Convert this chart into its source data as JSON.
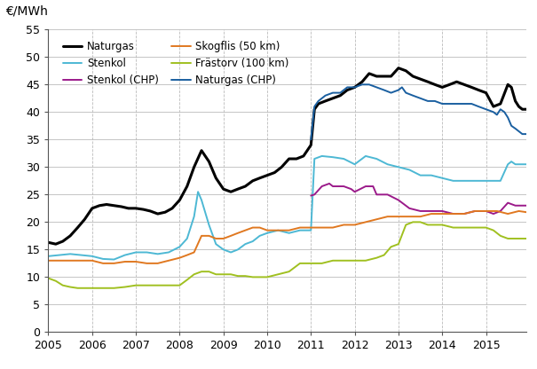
{
  "ylabel": "€/MWh",
  "ylim": [
    0,
    55
  ],
  "yticks": [
    0,
    5,
    10,
    15,
    20,
    25,
    30,
    35,
    40,
    45,
    50,
    55
  ],
  "xlim": [
    2005.0,
    2015.92
  ],
  "xtick_positions": [
    2005,
    2006,
    2007,
    2008,
    2009,
    2010,
    2011,
    2012,
    2013,
    2014,
    2015
  ],
  "xtick_labels": [
    "2005",
    "2006",
    "2007",
    "2008",
    "2009",
    "2010",
    "2011",
    "2012",
    "2013",
    "2014",
    "2015"
  ],
  "background": "#ffffff",
  "grid_color": "#bbbbbb",
  "legend_order": [
    "Naturgas",
    "Stenkol",
    "Stenkol (CHP)",
    "Skogflis (50 km)",
    "Frästorv (100 km)",
    "Naturgas (CHP)"
  ],
  "series": {
    "Naturgas": {
      "color": "#000000",
      "lw": 2.2,
      "points": [
        [
          2005.0,
          16.3
        ],
        [
          2005.17,
          16.0
        ],
        [
          2005.33,
          16.5
        ],
        [
          2005.5,
          17.5
        ],
        [
          2005.67,
          19.0
        ],
        [
          2005.83,
          20.5
        ],
        [
          2006.0,
          22.5
        ],
        [
          2006.17,
          23.0
        ],
        [
          2006.33,
          23.2
        ],
        [
          2006.5,
          23.0
        ],
        [
          2006.67,
          22.8
        ],
        [
          2006.83,
          22.5
        ],
        [
          2007.0,
          22.5
        ],
        [
          2007.17,
          22.3
        ],
        [
          2007.33,
          22.0
        ],
        [
          2007.5,
          21.5
        ],
        [
          2007.67,
          21.8
        ],
        [
          2007.83,
          22.5
        ],
        [
          2008.0,
          24.0
        ],
        [
          2008.17,
          26.5
        ],
        [
          2008.33,
          30.0
        ],
        [
          2008.5,
          33.0
        ],
        [
          2008.67,
          31.0
        ],
        [
          2008.83,
          28.0
        ],
        [
          2009.0,
          26.0
        ],
        [
          2009.17,
          25.5
        ],
        [
          2009.33,
          26.0
        ],
        [
          2009.5,
          26.5
        ],
        [
          2009.67,
          27.5
        ],
        [
          2009.83,
          28.0
        ],
        [
          2010.0,
          28.5
        ],
        [
          2010.17,
          29.0
        ],
        [
          2010.33,
          30.0
        ],
        [
          2010.5,
          31.5
        ],
        [
          2010.67,
          31.5
        ],
        [
          2010.83,
          32.0
        ],
        [
          2011.0,
          34.0
        ],
        [
          2011.08,
          40.5
        ],
        [
          2011.17,
          41.5
        ],
        [
          2011.33,
          42.0
        ],
        [
          2011.5,
          42.5
        ],
        [
          2011.67,
          43.0
        ],
        [
          2011.83,
          44.0
        ],
        [
          2012.0,
          44.5
        ],
        [
          2012.17,
          45.5
        ],
        [
          2012.33,
          47.0
        ],
        [
          2012.5,
          46.5
        ],
        [
          2012.67,
          46.5
        ],
        [
          2012.83,
          46.5
        ],
        [
          2013.0,
          48.0
        ],
        [
          2013.17,
          47.5
        ],
        [
          2013.33,
          46.5
        ],
        [
          2013.5,
          46.0
        ],
        [
          2013.67,
          45.5
        ],
        [
          2013.83,
          45.0
        ],
        [
          2014.0,
          44.5
        ],
        [
          2014.17,
          45.0
        ],
        [
          2014.33,
          45.5
        ],
        [
          2014.5,
          45.0
        ],
        [
          2014.67,
          44.5
        ],
        [
          2014.83,
          44.0
        ],
        [
          2015.0,
          43.5
        ],
        [
          2015.17,
          41.0
        ],
        [
          2015.33,
          41.5
        ],
        [
          2015.5,
          45.0
        ],
        [
          2015.58,
          44.5
        ],
        [
          2015.67,
          42.0
        ],
        [
          2015.75,
          41.0
        ],
        [
          2015.83,
          40.5
        ],
        [
          2015.92,
          40.5
        ]
      ]
    },
    "Stenkol": {
      "color": "#4db8d4",
      "lw": 1.4,
      "points": [
        [
          2005.0,
          13.8
        ],
        [
          2005.25,
          14.0
        ],
        [
          2005.5,
          14.2
        ],
        [
          2005.75,
          14.0
        ],
        [
          2006.0,
          13.8
        ],
        [
          2006.25,
          13.3
        ],
        [
          2006.5,
          13.2
        ],
        [
          2006.75,
          14.0
        ],
        [
          2007.0,
          14.5
        ],
        [
          2007.25,
          14.5
        ],
        [
          2007.5,
          14.2
        ],
        [
          2007.75,
          14.5
        ],
        [
          2008.0,
          15.5
        ],
        [
          2008.17,
          17.0
        ],
        [
          2008.33,
          21.0
        ],
        [
          2008.42,
          25.5
        ],
        [
          2008.5,
          24.0
        ],
        [
          2008.67,
          19.5
        ],
        [
          2008.83,
          16.0
        ],
        [
          2009.0,
          15.0
        ],
        [
          2009.17,
          14.5
        ],
        [
          2009.33,
          15.0
        ],
        [
          2009.5,
          16.0
        ],
        [
          2009.67,
          16.5
        ],
        [
          2009.83,
          17.5
        ],
        [
          2010.0,
          18.0
        ],
        [
          2010.25,
          18.5
        ],
        [
          2010.5,
          18.0
        ],
        [
          2010.75,
          18.5
        ],
        [
          2011.0,
          18.5
        ],
        [
          2011.08,
          31.5
        ],
        [
          2011.25,
          32.0
        ],
        [
          2011.5,
          31.8
        ],
        [
          2011.75,
          31.5
        ],
        [
          2012.0,
          30.5
        ],
        [
          2012.25,
          32.0
        ],
        [
          2012.5,
          31.5
        ],
        [
          2012.75,
          30.5
        ],
        [
          2013.0,
          30.0
        ],
        [
          2013.25,
          29.5
        ],
        [
          2013.5,
          28.5
        ],
        [
          2013.75,
          28.5
        ],
        [
          2014.0,
          28.0
        ],
        [
          2014.25,
          27.5
        ],
        [
          2014.5,
          27.5
        ],
        [
          2014.75,
          27.5
        ],
        [
          2015.0,
          27.5
        ],
        [
          2015.17,
          27.5
        ],
        [
          2015.33,
          27.5
        ],
        [
          2015.5,
          30.5
        ],
        [
          2015.58,
          31.0
        ],
        [
          2015.67,
          30.5
        ],
        [
          2015.75,
          30.5
        ],
        [
          2015.92,
          30.5
        ]
      ]
    },
    "Stenkol (CHP)": {
      "color": "#9b1a8a",
      "lw": 1.4,
      "points": [
        [
          2011.0,
          24.8
        ],
        [
          2011.08,
          25.0
        ],
        [
          2011.25,
          26.5
        ],
        [
          2011.42,
          27.0
        ],
        [
          2011.5,
          26.5
        ],
        [
          2011.75,
          26.5
        ],
        [
          2011.92,
          26.0
        ],
        [
          2012.0,
          25.5
        ],
        [
          2012.25,
          26.5
        ],
        [
          2012.42,
          26.5
        ],
        [
          2012.5,
          25.0
        ],
        [
          2012.75,
          25.0
        ],
        [
          2013.0,
          24.0
        ],
        [
          2013.25,
          22.5
        ],
        [
          2013.5,
          22.0
        ],
        [
          2013.75,
          22.0
        ],
        [
          2014.0,
          22.0
        ],
        [
          2014.25,
          21.5
        ],
        [
          2014.5,
          21.5
        ],
        [
          2014.75,
          22.0
        ],
        [
          2015.0,
          22.0
        ],
        [
          2015.17,
          21.5
        ],
        [
          2015.33,
          22.0
        ],
        [
          2015.5,
          23.5
        ],
        [
          2015.67,
          23.0
        ],
        [
          2015.83,
          23.0
        ],
        [
          2015.92,
          23.0
        ]
      ]
    },
    "Skogflis (50 km)": {
      "color": "#e07820",
      "lw": 1.4,
      "points": [
        [
          2005.0,
          13.0
        ],
        [
          2005.25,
          13.0
        ],
        [
          2005.5,
          13.0
        ],
        [
          2005.75,
          13.0
        ],
        [
          2006.0,
          13.0
        ],
        [
          2006.25,
          12.5
        ],
        [
          2006.5,
          12.5
        ],
        [
          2006.75,
          12.8
        ],
        [
          2007.0,
          12.8
        ],
        [
          2007.25,
          12.5
        ],
        [
          2007.5,
          12.5
        ],
        [
          2007.75,
          13.0
        ],
        [
          2008.0,
          13.5
        ],
        [
          2008.17,
          14.0
        ],
        [
          2008.33,
          14.5
        ],
        [
          2008.5,
          17.5
        ],
        [
          2008.67,
          17.5
        ],
        [
          2008.83,
          17.0
        ],
        [
          2009.0,
          17.0
        ],
        [
          2009.17,
          17.5
        ],
        [
          2009.33,
          18.0
        ],
        [
          2009.5,
          18.5
        ],
        [
          2009.67,
          19.0
        ],
        [
          2009.83,
          19.0
        ],
        [
          2010.0,
          18.5
        ],
        [
          2010.25,
          18.5
        ],
        [
          2010.5,
          18.5
        ],
        [
          2010.75,
          19.0
        ],
        [
          2011.0,
          19.0
        ],
        [
          2011.25,
          19.0
        ],
        [
          2011.5,
          19.0
        ],
        [
          2011.75,
          19.5
        ],
        [
          2012.0,
          19.5
        ],
        [
          2012.25,
          20.0
        ],
        [
          2012.5,
          20.5
        ],
        [
          2012.75,
          21.0
        ],
        [
          2013.0,
          21.0
        ],
        [
          2013.25,
          21.0
        ],
        [
          2013.5,
          21.0
        ],
        [
          2013.75,
          21.5
        ],
        [
          2014.0,
          21.5
        ],
        [
          2014.25,
          21.5
        ],
        [
          2014.5,
          21.5
        ],
        [
          2014.75,
          22.0
        ],
        [
          2015.0,
          22.0
        ],
        [
          2015.25,
          22.0
        ],
        [
          2015.5,
          21.5
        ],
        [
          2015.75,
          22.0
        ],
        [
          2015.92,
          21.8
        ]
      ]
    },
    "Frästorv (100 km)": {
      "color": "#a0c020",
      "lw": 1.4,
      "points": [
        [
          2005.0,
          9.8
        ],
        [
          2005.17,
          9.3
        ],
        [
          2005.33,
          8.5
        ],
        [
          2005.5,
          8.2
        ],
        [
          2005.67,
          8.0
        ],
        [
          2005.83,
          8.0
        ],
        [
          2006.0,
          8.0
        ],
        [
          2006.25,
          8.0
        ],
        [
          2006.5,
          8.0
        ],
        [
          2006.75,
          8.2
        ],
        [
          2007.0,
          8.5
        ],
        [
          2007.25,
          8.5
        ],
        [
          2007.5,
          8.5
        ],
        [
          2007.75,
          8.5
        ],
        [
          2008.0,
          8.5
        ],
        [
          2008.17,
          9.5
        ],
        [
          2008.33,
          10.5
        ],
        [
          2008.5,
          11.0
        ],
        [
          2008.67,
          11.0
        ],
        [
          2008.83,
          10.5
        ],
        [
          2009.0,
          10.5
        ],
        [
          2009.17,
          10.5
        ],
        [
          2009.33,
          10.2
        ],
        [
          2009.5,
          10.2
        ],
        [
          2009.67,
          10.0
        ],
        [
          2009.83,
          10.0
        ],
        [
          2010.0,
          10.0
        ],
        [
          2010.25,
          10.5
        ],
        [
          2010.5,
          11.0
        ],
        [
          2010.75,
          12.5
        ],
        [
          2011.0,
          12.5
        ],
        [
          2011.25,
          12.5
        ],
        [
          2011.5,
          13.0
        ],
        [
          2011.75,
          13.0
        ],
        [
          2012.0,
          13.0
        ],
        [
          2012.25,
          13.0
        ],
        [
          2012.5,
          13.5
        ],
        [
          2012.67,
          14.0
        ],
        [
          2012.83,
          15.5
        ],
        [
          2013.0,
          16.0
        ],
        [
          2013.17,
          19.5
        ],
        [
          2013.33,
          20.0
        ],
        [
          2013.5,
          20.0
        ],
        [
          2013.67,
          19.5
        ],
        [
          2013.83,
          19.5
        ],
        [
          2014.0,
          19.5
        ],
        [
          2014.25,
          19.0
        ],
        [
          2014.5,
          19.0
        ],
        [
          2014.75,
          19.0
        ],
        [
          2015.0,
          19.0
        ],
        [
          2015.17,
          18.5
        ],
        [
          2015.33,
          17.5
        ],
        [
          2015.5,
          17.0
        ],
        [
          2015.67,
          17.0
        ],
        [
          2015.83,
          17.0
        ],
        [
          2015.92,
          17.0
        ]
      ]
    },
    "Naturgas (CHP)": {
      "color": "#1a5fa0",
      "lw": 1.4,
      "points": [
        [
          2011.0,
          35.0
        ],
        [
          2011.08,
          41.0
        ],
        [
          2011.17,
          42.0
        ],
        [
          2011.33,
          43.0
        ],
        [
          2011.5,
          43.5
        ],
        [
          2011.67,
          43.5
        ],
        [
          2011.83,
          44.5
        ],
        [
          2012.0,
          44.5
        ],
        [
          2012.17,
          45.0
        ],
        [
          2012.33,
          45.0
        ],
        [
          2012.5,
          44.5
        ],
        [
          2012.67,
          44.0
        ],
        [
          2012.83,
          43.5
        ],
        [
          2013.0,
          44.0
        ],
        [
          2013.08,
          44.5
        ],
        [
          2013.17,
          43.5
        ],
        [
          2013.33,
          43.0
        ],
        [
          2013.5,
          42.5
        ],
        [
          2013.67,
          42.0
        ],
        [
          2013.83,
          42.0
        ],
        [
          2014.0,
          41.5
        ],
        [
          2014.17,
          41.5
        ],
        [
          2014.33,
          41.5
        ],
        [
          2014.5,
          41.5
        ],
        [
          2014.67,
          41.5
        ],
        [
          2014.83,
          41.0
        ],
        [
          2015.0,
          40.5
        ],
        [
          2015.17,
          40.0
        ],
        [
          2015.25,
          39.5
        ],
        [
          2015.33,
          40.5
        ],
        [
          2015.42,
          40.0
        ],
        [
          2015.5,
          39.0
        ],
        [
          2015.58,
          37.5
        ],
        [
          2015.67,
          37.0
        ],
        [
          2015.75,
          36.5
        ],
        [
          2015.83,
          36.0
        ],
        [
          2015.92,
          36.0
        ]
      ]
    }
  }
}
